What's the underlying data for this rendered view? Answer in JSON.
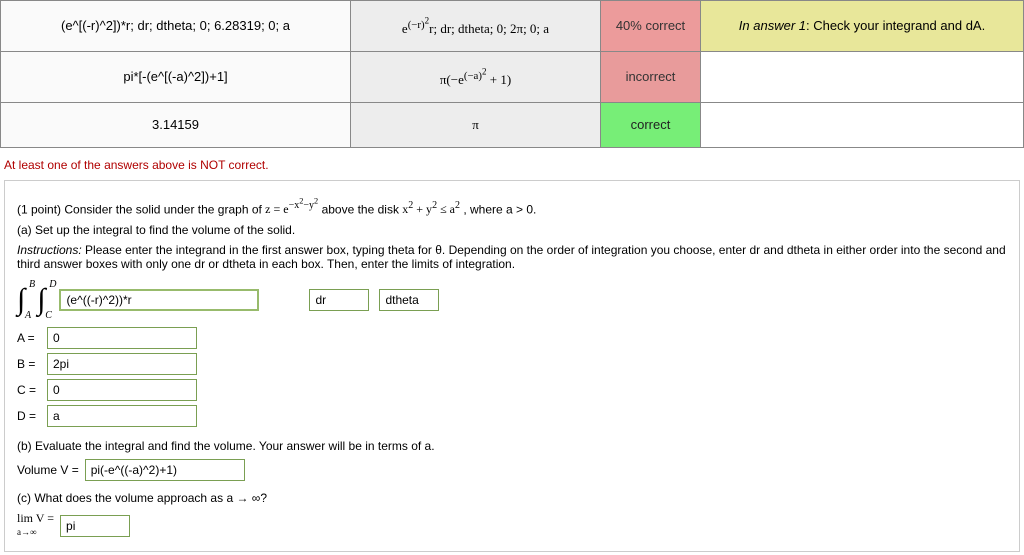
{
  "colors": {
    "border": "#888888",
    "partial_bg": "#ec9b9b",
    "incorrect_bg": "#e89b9b",
    "correct_bg": "#77ee77",
    "feedback_bg": "#e8e79a",
    "warn": "#b00000",
    "input_border": "#98bb6c"
  },
  "table": {
    "rows": [
      {
        "student": "(e^[(-r)^2])*r; dr; dtheta; 0; 6.28319; 0; a",
        "correct_html": "e<sup>(−r)<sup>2</sup></sup>r; dr; dtheta; 0; 2π; 0; a",
        "status": "40% correct",
        "status_class": "status-partial",
        "feedback_prefix": "In answer 1",
        "feedback_text": ": Check your integrand and dA.",
        "feedback_class": "feedback-banner"
      },
      {
        "student": "pi*[-(e^[(-a)^2])+1]",
        "correct_html": "π(−e<sup>(−a)<sup>2</sup></sup> + 1)",
        "status": "incorrect",
        "status_class": "status-incorrect",
        "feedback_prefix": "",
        "feedback_text": "",
        "feedback_class": ""
      },
      {
        "student": "3.14159",
        "correct_html": "π",
        "status": "correct",
        "status_class": "status-correct",
        "feedback_prefix": "",
        "feedback_text": "",
        "feedback_class": ""
      }
    ]
  },
  "warning_text": "At least one of the answers above is NOT correct.",
  "problem": {
    "points": "(1 point)",
    "stem1": "Consider the solid under the graph of ",
    "stem_math": "z = e<sup>−x<sup>2</sup>−y<sup>2</sup></sup>",
    "stem2": " above the disk ",
    "stem_math2": "x<sup>2</sup> + y<sup>2</sup> ≤ a<sup>2</sup>",
    "stem3": ", where a > 0.",
    "partA": "(a) Set up the integral to find the volume of the solid.",
    "instructions_label": "Instructions:",
    "instructions_text": " Please enter the integrand in the first answer box, typing theta for θ. Depending on the order of integration you choose, enter dr and dtheta in either order into the second and third answer boxes with only one dr or dtheta in each box. Then, enter the limits of integration.",
    "integral": {
      "outer_lower": "A",
      "outer_upper": "B",
      "inner_lower": "C",
      "inner_upper": "D",
      "integrand": "(e^((-r)^2))*r",
      "d1": "dr",
      "d2": "dtheta"
    },
    "limits": {
      "A_label": "A =",
      "A": "0",
      "B_label": "B =",
      "B": "2pi",
      "C_label": "C =",
      "C": "0",
      "D_label": "D =",
      "D": "a"
    },
    "partB_text": "(b) Evaluate the integral and find the volume. Your answer will be in terms of a.",
    "partB_label": "Volume V =",
    "partB_value": "pi(-e^((-a)^2)+1)",
    "partC_text": "(c) What does the volume approach as a → ∞?",
    "partC_label_html": "lim V =",
    "partC_sub": "a→∞",
    "partC_value": "pi"
  }
}
